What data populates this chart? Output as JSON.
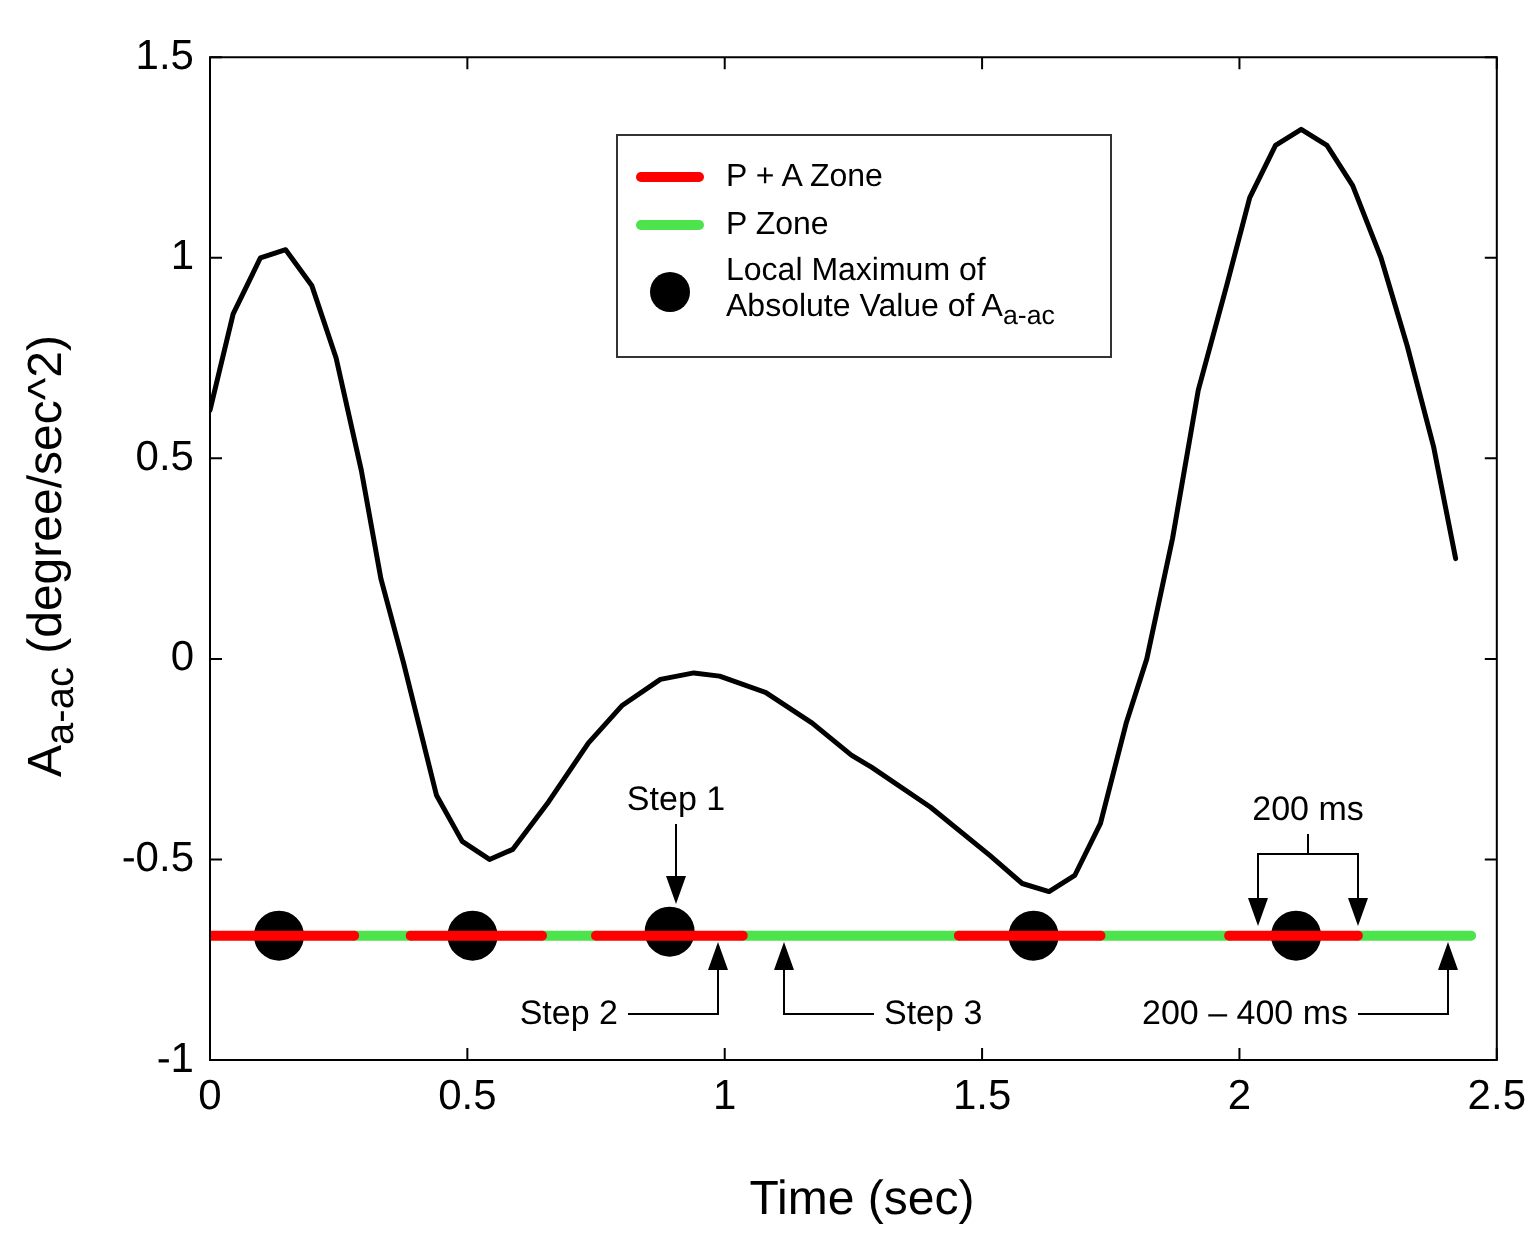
{
  "chart_data": {
    "type": "line",
    "xlabel": "Time (sec)",
    "ylabel": "A$_{a-ac}$ (degree/sec^2)",
    "xlim": [
      0,
      2.5
    ],
    "xticks": [
      0,
      0.5,
      {
        "value": 1,
        "label": "1"
      },
      1.5,
      {
        "value": 2,
        "label": "2"
      },
      2.5
    ],
    "ylim": [
      -1,
      1.5
    ],
    "yticks": [
      {
        "value": -1,
        "label": "-1"
      },
      -0.5,
      0,
      0.5,
      {
        "value": 1,
        "label": "1"
      },
      1.5
    ],
    "grid": false,
    "legend": "top",
    "series": [
      {
        "color": "#000000",
        "marker": "none",
        "x": [
          0,
          0.045,
          0.098,
          0.147,
          0.198,
          0.245,
          0.294,
          0.332,
          0.376,
          0.44,
          0.49,
          0.543,
          0.588,
          0.658,
          0.735,
          0.8,
          0.875,
          0.94,
          0.99,
          1.08,
          1.17,
          1.246,
          1.285,
          1.4,
          1.515,
          1.578,
          1.63,
          1.68,
          1.73,
          1.78,
          1.82,
          1.87,
          1.92,
          1.975,
          2.02,
          2.07,
          2.12,
          2.17,
          2.22,
          2.275,
          2.326,
          2.377,
          2.42
        ],
        "values": [
          0.62,
          0.86,
          1.0,
          1.02,
          0.93,
          0.75,
          0.47,
          0.2,
          -0.01,
          -0.34,
          -0.455,
          -0.5,
          -0.475,
          -0.356,
          -0.21,
          -0.117,
          -0.051,
          -0.035,
          -0.043,
          -0.084,
          -0.16,
          -0.24,
          -0.27,
          -0.37,
          -0.49,
          -0.56,
          -0.58,
          -0.54,
          -0.41,
          -0.16,
          0.0,
          0.3,
          0.67,
          0.93,
          1.15,
          1.28,
          1.32,
          1.28,
          1.18,
          1.0,
          0.78,
          0.53,
          0.25
        ]
      },
      {
        "name": "P + A Zone",
        "color": "#ff0000",
        "marker": "none",
        "x": [
          0,
          0.28,
          0.335,
          0.39,
          0.645,
          0.7,
          0.75,
          1.035,
          1.245,
          1.455,
          1.73,
          1.855,
          1.98,
          2.23
        ],
        "values": [
          -0.69,
          -0.69,
          null,
          -0.69,
          -0.69,
          null,
          -0.69,
          -0.69,
          null,
          -0.69,
          -0.69,
          null,
          -0.69,
          -0.69
        ]
      },
      {
        "name": "P Zone",
        "color": "#4ce34c",
        "marker": "none",
        "x": [
          0.28,
          0.39,
          0.5,
          0.645,
          0.75,
          0.9,
          1.035,
          1.455,
          1.6,
          1.73,
          1.98,
          2.1,
          2.23,
          2.45
        ],
        "values": [
          -0.69,
          -0.69,
          null,
          -0.69,
          -0.69,
          null,
          -0.69,
          -0.69,
          null,
          -0.69,
          -0.69,
          null,
          -0.69,
          -0.69
        ]
      },
      {
        "name": "Local Maximum of Absolute Value of A$_{a-ac}$",
        "type": "scatter",
        "color": "#000000",
        "marker": "circle",
        "x": [
          0.134,
          0.51,
          0.893,
          1.6,
          2.11
        ],
        "values": [
          -0.69,
          -0.69,
          -0.68,
          -0.69,
          -0.69
        ]
      }
    ],
    "annotations": [
      "Step 1",
      "Step 2",
      "Step 3",
      "200 ms",
      "200 – 400 ms"
    ]
  }
}
